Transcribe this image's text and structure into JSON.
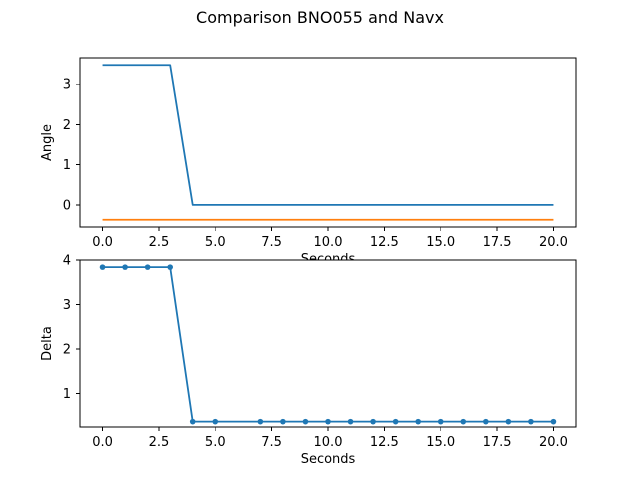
{
  "figure": {
    "title": "Comparison BNO055 and Navx"
  },
  "chart_data": [
    {
      "type": "line",
      "title": "",
      "xlabel": "Seconds",
      "ylabel": "Angle",
      "xlim": [
        -1,
        21
      ],
      "ylim": [
        -0.55,
        3.65
      ],
      "xticks": [
        0.0,
        2.5,
        5.0,
        7.5,
        10.0,
        12.5,
        15.0,
        17.5,
        20.0
      ],
      "xtick_labels": [
        "0.0",
        "2.5",
        "5.0",
        "7.5",
        "10.0",
        "12.5",
        "15.0",
        "17.5",
        "20.0"
      ],
      "yticks": [
        0,
        1,
        2,
        3
      ],
      "ytick_labels": [
        "0",
        "1",
        "2",
        "3"
      ],
      "grid": false,
      "series": [
        {
          "color": "#1f77b4",
          "marker": "none",
          "x": [
            0,
            1,
            2,
            3,
            4,
            5,
            6,
            7,
            8,
            9,
            10,
            11,
            12,
            13,
            14,
            15,
            16,
            17,
            18,
            19,
            20
          ],
          "values": [
            3.47,
            3.47,
            3.47,
            3.47,
            0.0,
            0.0,
            0.0,
            0.0,
            0.0,
            0.0,
            0.0,
            0.0,
            0.0,
            0.0,
            0.0,
            0.0,
            0.0,
            0.0,
            0.0,
            0.0,
            0.0
          ]
        },
        {
          "color": "#ff7f0e",
          "marker": "none",
          "x": [
            0,
            1,
            2,
            3,
            4,
            5,
            6,
            7,
            8,
            9,
            10,
            11,
            12,
            13,
            14,
            15,
            16,
            17,
            18,
            19,
            20
          ],
          "values": [
            -0.37,
            -0.37,
            -0.37,
            -0.37,
            -0.37,
            -0.37,
            -0.37,
            -0.37,
            -0.37,
            -0.37,
            -0.37,
            -0.37,
            -0.37,
            -0.37,
            -0.37,
            -0.37,
            -0.37,
            -0.37,
            -0.37,
            -0.37,
            -0.37
          ]
        }
      ]
    },
    {
      "type": "line",
      "title": "",
      "xlabel": "Seconds",
      "ylabel": "Delta",
      "xlim": [
        -1,
        21
      ],
      "ylim": [
        0.25,
        4.0
      ],
      "xticks": [
        0.0,
        2.5,
        5.0,
        7.5,
        10.0,
        12.5,
        15.0,
        17.5,
        20.0
      ],
      "xtick_labels": [
        "0.0",
        "2.5",
        "5.0",
        "7.5",
        "10.0",
        "12.5",
        "15.0",
        "17.5",
        "20.0"
      ],
      "yticks": [
        1,
        2,
        3,
        4
      ],
      "ytick_labels": [
        "1",
        "2",
        "3",
        "4"
      ],
      "grid": false,
      "series": [
        {
          "color": "#1f77b4",
          "marker": "dot",
          "x": [
            0,
            1,
            2,
            3,
            4,
            5,
            7,
            8,
            9,
            10,
            11,
            12,
            13,
            14,
            15,
            16,
            17,
            18,
            19,
            20
          ],
          "values": [
            3.84,
            3.84,
            3.84,
            3.84,
            0.37,
            0.37,
            0.37,
            0.37,
            0.37,
            0.37,
            0.37,
            0.37,
            0.37,
            0.37,
            0.37,
            0.37,
            0.37,
            0.37,
            0.37,
            0.37
          ]
        }
      ]
    }
  ]
}
